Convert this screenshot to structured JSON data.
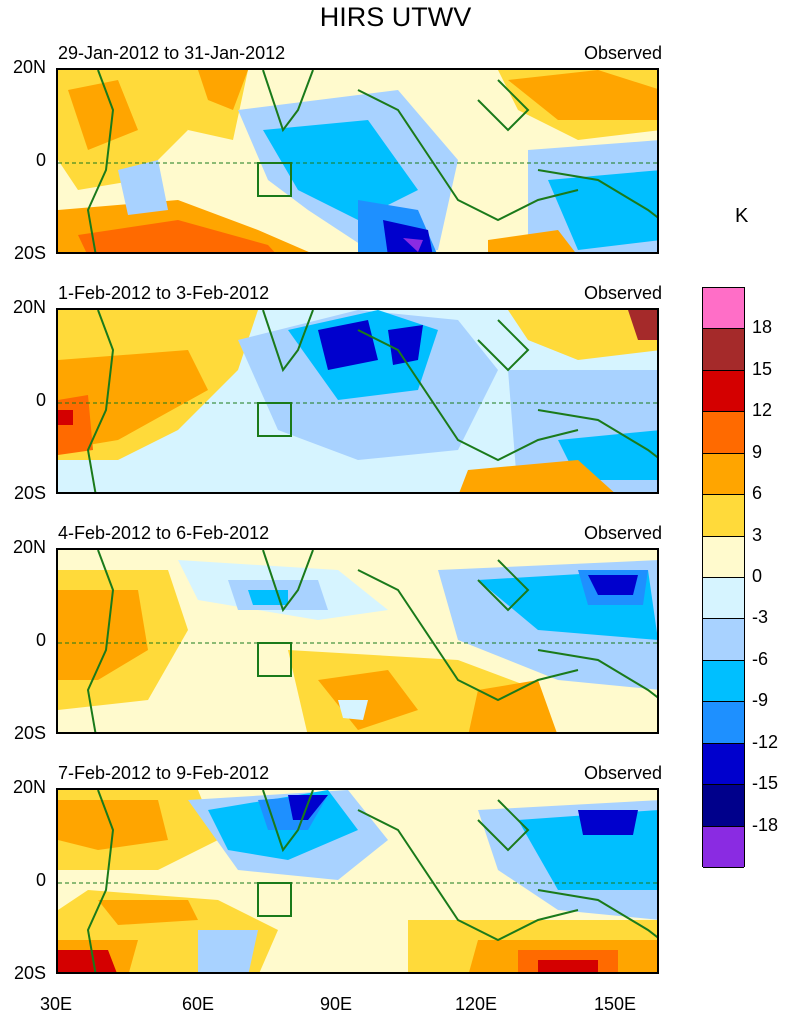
{
  "title": "HIRS UTWV",
  "unit": "K",
  "panels": [
    {
      "date": "29-Jan-2012 to 31-Jan-2012",
      "label": "Observed"
    },
    {
      "date": "1-Feb-2012 to 3-Feb-2012",
      "label": "Observed"
    },
    {
      "date": "4-Feb-2012 to 6-Feb-2012",
      "label": "Observed"
    },
    {
      "date": "7-Feb-2012 to 9-Feb-2012",
      "label": "Observed"
    }
  ],
  "lat_labels": [
    "20N",
    "0",
    "20S"
  ],
  "lon_labels": [
    "30E",
    "60E",
    "90E",
    "120E",
    "150E"
  ],
  "colorbar": {
    "ticks": [
      "18",
      "15",
      "12",
      "9",
      "6",
      "3",
      "0",
      "-3",
      "-6",
      "-9",
      "-12",
      "-15",
      "-18"
    ],
    "colors": [
      "#ff6ec7",
      "#a52a2a",
      "#d40000",
      "#ff6a00",
      "#ffa500",
      "#ffda3a",
      "#fffacd",
      "#d6f4ff",
      "#a8d2ff",
      "#00bfff",
      "#1e90ff",
      "#0000cd",
      "#00008b",
      "#8a2be2"
    ]
  }
}
